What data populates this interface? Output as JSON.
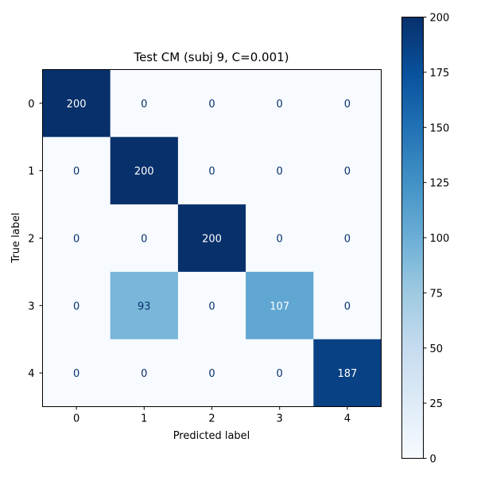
{
  "chart_data": {
    "type": "heatmap",
    "title": "Test CM (subj 9, C=0.001)",
    "xlabel": "Predicted label",
    "ylabel": "True label",
    "x_categories": [
      "0",
      "1",
      "2",
      "3",
      "4"
    ],
    "y_categories": [
      "0",
      "1",
      "2",
      "3",
      "4"
    ],
    "matrix": [
      [
        200,
        0,
        0,
        0,
        0
      ],
      [
        0,
        200,
        0,
        0,
        0
      ],
      [
        0,
        0,
        200,
        0,
        0
      ],
      [
        0,
        93,
        0,
        107,
        0
      ],
      [
        0,
        0,
        0,
        0,
        187
      ]
    ],
    "colormap": "Blues",
    "vmin": 0,
    "vmax": 200,
    "colorbar_ticks": [
      "0",
      "25",
      "50",
      "75",
      "100",
      "125",
      "150",
      "175",
      "200"
    ],
    "colors": {
      "low": "#f7fbff",
      "high": "#08306b"
    }
  }
}
